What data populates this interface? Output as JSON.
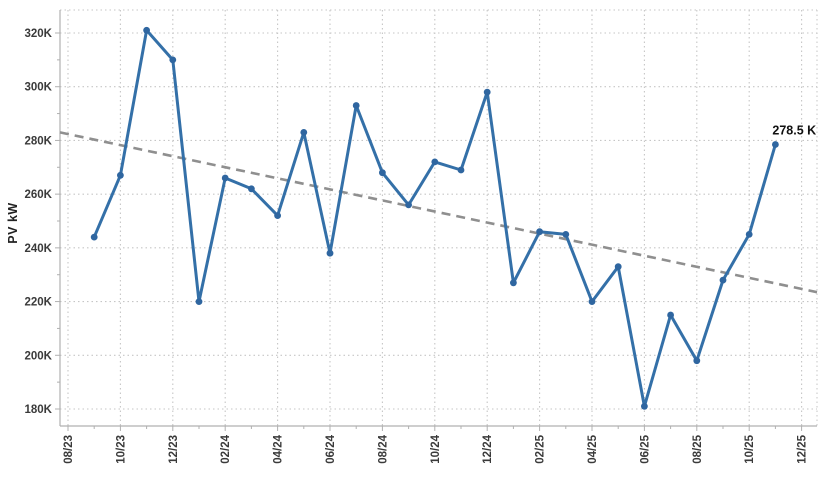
{
  "chart_data": {
    "type": "line",
    "title": "",
    "xlabel": "",
    "ylabel": "PV kW",
    "unit": "kW",
    "grid": true,
    "legend": "none",
    "x": [
      "09/23",
      "10/23",
      "11/23",
      "12/23",
      "01/24",
      "02/24",
      "03/24",
      "04/24",
      "05/24",
      "06/24",
      "07/24",
      "08/24",
      "09/24",
      "10/24",
      "11/24",
      "12/24",
      "01/25",
      "02/25",
      "03/25",
      "04/25",
      "05/25",
      "06/25",
      "07/25",
      "08/25",
      "09/25",
      "10/25",
      "11/25"
    ],
    "series": [
      {
        "name": "PV kW",
        "values": [
          244,
          267,
          321,
          310,
          220,
          266,
          262,
          252,
          283,
          238,
          293,
          268,
          256,
          272,
          269,
          298,
          227,
          246,
          245,
          220,
          233,
          181,
          215,
          198,
          228,
          245,
          278.5
        ]
      }
    ],
    "x_axis_range": [
      "08/23",
      "12/25"
    ],
    "x_tick_labels": [
      "08/23",
      "10/23",
      "12/23",
      "02/24",
      "04/24",
      "06/24",
      "08/24",
      "10/24",
      "12/24",
      "02/25",
      "04/25",
      "06/25",
      "08/25",
      "10/25",
      "12/25"
    ],
    "y_tick_labels": [
      "180K",
      "200K",
      "220K",
      "240K",
      "260K",
      "280K",
      "300K",
      "320K"
    ],
    "ylim": [
      173,
      329
    ],
    "trendline": {
      "style": "dashed",
      "start_value": 283,
      "end_value": 223.5
    },
    "last_point_annotation": "278.5 K"
  },
  "colors": {
    "series_line": "#3470a8",
    "marker": "#2f66a0",
    "trendline": "#8f8f8f",
    "gridline": "#c6c6c6",
    "axis_line": "#b0b0b0",
    "tick_text": "#3a3a3a",
    "axis_label_text": "#222222",
    "annotation_text": "#111111",
    "background": "#ffffff"
  }
}
